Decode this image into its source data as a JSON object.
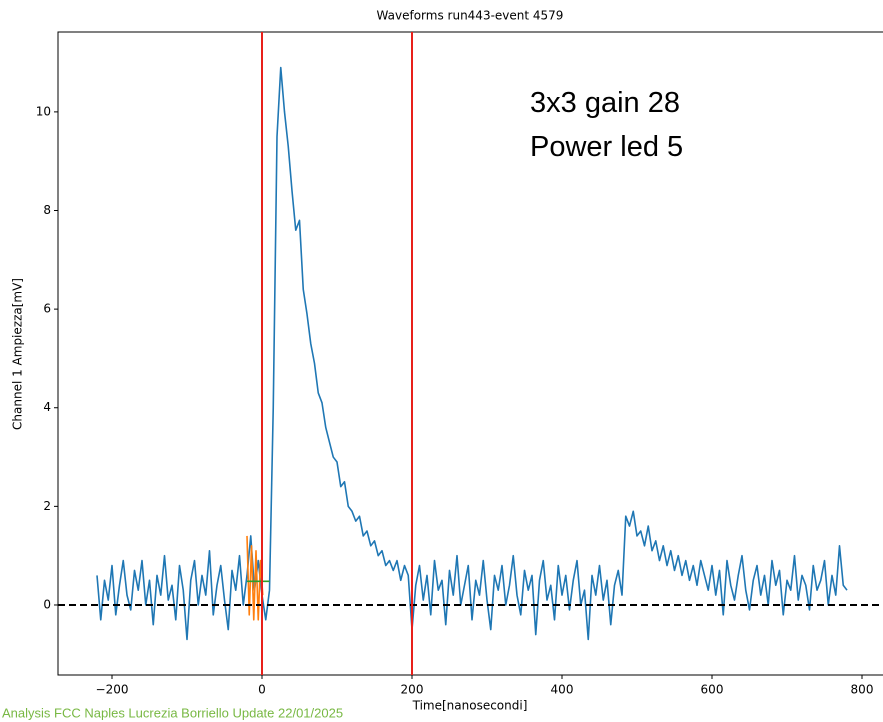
{
  "chart_data": {
    "type": "line",
    "title": "Waveforms run443-event 4579",
    "xlabel": "Time[nanosecondi]",
    "ylabel": "Channel 1 Ampiezza[mV]",
    "annotations": [
      "3x3 gain 28",
      "Power led 5"
    ],
    "footer": "Analysis FCC Naples Lucrezia Borriello Update 22/01/2025",
    "xlim": [
      -272,
      828
    ],
    "ylim": [
      -1.42,
      11.62
    ],
    "xticks": [
      {
        "value": -200,
        "label": "−200"
      },
      0,
      200,
      400,
      600,
      800
    ],
    "yticks": [
      0,
      2,
      4,
      6,
      8,
      10
    ],
    "vlines": {
      "x": [
        0,
        200
      ],
      "color": "#e8201a"
    },
    "hline": {
      "y": 0,
      "color": "#000000",
      "dashed": true
    },
    "series": [
      {
        "color": "#1f77b4",
        "x": [
          -220,
          -215,
          -210,
          -205,
          -200,
          -195,
          -190,
          -185,
          -180,
          -175,
          -170,
          -165,
          -160,
          -155,
          -150,
          -145,
          -140,
          -135,
          -130,
          -125,
          -120,
          -115,
          -110,
          -105,
          -100,
          -95,
          -90,
          -85,
          -80,
          -75,
          -70,
          -65,
          -60,
          -55,
          -50,
          -45,
          -40,
          -35,
          -30,
          -25,
          -20,
          -15,
          -10,
          -5,
          0,
          5,
          10,
          15,
          20,
          25,
          30,
          35,
          40,
          45,
          50,
          55,
          60,
          65,
          70,
          75,
          80,
          85,
          90,
          95,
          100,
          105,
          110,
          115,
          120,
          125,
          130,
          135,
          140,
          145,
          150,
          155,
          160,
          165,
          170,
          175,
          180,
          185,
          190,
          195,
          200,
          205,
          210,
          215,
          220,
          225,
          230,
          235,
          240,
          245,
          250,
          255,
          260,
          265,
          270,
          275,
          280,
          285,
          290,
          295,
          300,
          305,
          310,
          315,
          320,
          325,
          330,
          335,
          340,
          345,
          350,
          355,
          360,
          365,
          370,
          375,
          380,
          385,
          390,
          395,
          400,
          405,
          410,
          415,
          420,
          425,
          430,
          435,
          440,
          445,
          450,
          455,
          460,
          465,
          470,
          475,
          480,
          485,
          490,
          495,
          500,
          505,
          510,
          515,
          520,
          525,
          530,
          535,
          540,
          545,
          550,
          555,
          560,
          565,
          570,
          575,
          580,
          585,
          590,
          595,
          600,
          605,
          610,
          615,
          620,
          625,
          630,
          635,
          640,
          645,
          650,
          655,
          660,
          665,
          670,
          675,
          680,
          685,
          690,
          695,
          700,
          705,
          710,
          715,
          720,
          725,
          730,
          735,
          740,
          745,
          750,
          755,
          760,
          765,
          770,
          775,
          780
        ],
        "values": [
          0.6,
          -0.3,
          0.5,
          0.1,
          0.8,
          -0.2,
          0.4,
          0.9,
          0.2,
          -0.1,
          0.7,
          0.3,
          0.9,
          0.0,
          0.5,
          -0.4,
          0.6,
          0.2,
          1.0,
          0.1,
          0.4,
          -0.3,
          0.8,
          0.3,
          -0.7,
          0.5,
          0.9,
          0.0,
          0.6,
          0.2,
          1.1,
          -0.2,
          0.4,
          0.8,
          0.1,
          -0.5,
          0.7,
          0.3,
          1.0,
          0.0,
          0.6,
          1.4,
          0.3,
          0.9,
          0.2,
          -0.3,
          0.3,
          4.0,
          9.5,
          10.9,
          10.0,
          9.3,
          8.4,
          7.6,
          7.8,
          6.4,
          5.9,
          5.3,
          4.9,
          4.3,
          4.1,
          3.6,
          3.3,
          3.0,
          2.9,
          2.4,
          2.5,
          2.0,
          1.9,
          1.7,
          1.8,
          1.4,
          1.5,
          1.2,
          1.3,
          1.0,
          1.1,
          0.8,
          0.9,
          0.7,
          0.9,
          0.5,
          0.8,
          0.6,
          -0.5,
          0.4,
          0.8,
          0.1,
          0.6,
          -0.2,
          0.9,
          0.3,
          0.5,
          -0.4,
          0.7,
          0.2,
          1.0,
          0.0,
          0.4,
          0.8,
          -0.3,
          0.5,
          0.2,
          0.9,
          0.1,
          -0.5,
          0.6,
          0.3,
          0.8,
          0.0,
          0.4,
          1.0,
          0.2,
          -0.2,
          0.7,
          0.3,
          0.6,
          -0.6,
          0.5,
          0.9,
          0.1,
          0.4,
          -0.3,
          0.8,
          0.2,
          0.6,
          -0.1,
          0.5,
          0.9,
          0.0,
          0.3,
          -0.7,
          0.6,
          0.2,
          0.8,
          0.1,
          0.5,
          -0.4,
          0.4,
          0.7,
          0.2,
          1.8,
          1.6,
          1.9,
          1.4,
          1.5,
          1.2,
          1.6,
          1.1,
          1.3,
          0.9,
          1.2,
          0.8,
          1.1,
          0.7,
          1.0,
          0.6,
          0.9,
          0.5,
          0.8,
          0.4,
          0.9,
          0.6,
          0.3,
          0.8,
          0.2,
          0.7,
          -0.2,
          0.9,
          0.4,
          0.1,
          0.6,
          1.0,
          0.3,
          -0.1,
          0.5,
          0.8,
          0.2,
          0.6,
          0.0,
          0.9,
          0.4,
          0.7,
          -0.2,
          0.5,
          0.3,
          1.0,
          0.1,
          0.6,
          0.4,
          -0.1,
          0.8,
          0.3,
          0.5,
          0.9,
          0.0,
          0.6,
          0.2,
          1.2,
          0.4,
          0.3
        ]
      },
      {
        "color": "#ff7f0e",
        "x": [
          -20,
          -17,
          -14,
          -11,
          -8,
          -5,
          -2,
          1
        ],
        "values": [
          1.4,
          -0.2,
          1.2,
          -0.3,
          1.1,
          -0.3,
          0.9,
          0.2
        ]
      },
      {
        "color": "#2ca02c",
        "x": [
          -20,
          10
        ],
        "values": [
          0.48,
          0.48
        ]
      }
    ]
  }
}
